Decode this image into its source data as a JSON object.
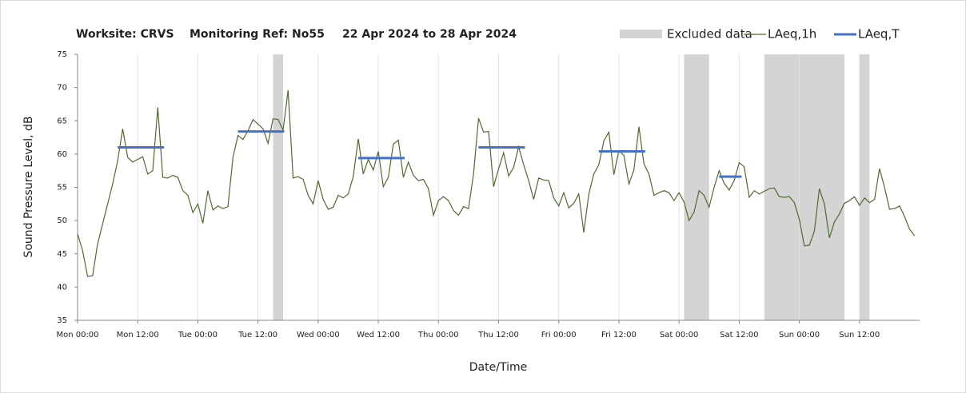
{
  "chart_data": {
    "type": "line",
    "title_parts": [
      "Worksite: CRVS",
      "Monitoring Ref: No55",
      "22 Apr 2024 to 28 Apr 2024"
    ],
    "x_label": "Date/Time",
    "y_label": "Sound Pressure Level, dB",
    "x": [
      0,
      1,
      2,
      3,
      4,
      5,
      6,
      7,
      8,
      9,
      10,
      11,
      12,
      13,
      14,
      15,
      16,
      17,
      18,
      19,
      20,
      21,
      22,
      23,
      24,
      25,
      26,
      27,
      28,
      29,
      30,
      31,
      32,
      33,
      34,
      35,
      36,
      37,
      38,
      39,
      40,
      41,
      42,
      43,
      44,
      45,
      46,
      47,
      48,
      49,
      50,
      51,
      52,
      53,
      54,
      55,
      56,
      57,
      58,
      59,
      60,
      61,
      62,
      63,
      64,
      65,
      66,
      67,
      68,
      69,
      70,
      71,
      72,
      73,
      74,
      75,
      76,
      77,
      78,
      79,
      80,
      81,
      82,
      83,
      84,
      85,
      86,
      87,
      88,
      89,
      90,
      91,
      92,
      93,
      94,
      95,
      96,
      97,
      98,
      99,
      100,
      101,
      102,
      103,
      104,
      105,
      106,
      107,
      108,
      109,
      110,
      111,
      112,
      113,
      114,
      115,
      116,
      117,
      118,
      119,
      120,
      121,
      122,
      123,
      124,
      125,
      126,
      127,
      128,
      129,
      130,
      131,
      132,
      133,
      134,
      135,
      136,
      137,
      138,
      139,
      140,
      141,
      142,
      143,
      144,
      145,
      146,
      147,
      148,
      149,
      150,
      151,
      152,
      153,
      154,
      155,
      156,
      157,
      158,
      159,
      160,
      161,
      162,
      163,
      164,
      165,
      166,
      167
    ],
    "series": [
      {
        "name": "LAeq,1h",
        "color": "#4f6a30",
        "values": [
          48,
          45.5,
          41.6,
          41.7,
          46.5,
          49.5,
          52.5,
          55.5,
          59,
          63.8,
          59.5,
          58.8,
          59.2,
          59.6,
          57,
          57.5,
          67,
          56.5,
          56.4,
          56.8,
          56.5,
          54.5,
          53.8,
          51.2,
          52.5,
          49.6,
          54.5,
          51.6,
          52.2,
          51.8,
          52.1,
          59.5,
          62.8,
          62.2,
          63.5,
          65.2,
          64.5,
          63.8,
          61.6,
          65.3,
          65.2,
          63.6,
          69.6,
          56.4,
          56.6,
          56.2,
          53.8,
          52.5,
          56,
          53.2,
          51.7,
          52,
          53.8,
          53.4,
          54,
          56.6,
          62.3,
          57,
          59.2,
          57.6,
          60.4,
          55.1,
          56.5,
          61.5,
          62.1,
          56.5,
          58.8,
          56.8,
          56,
          56.2,
          54.8,
          50.8,
          53,
          53.6,
          53,
          51.5,
          50.8,
          52.1,
          51.8,
          57,
          65.4,
          63.3,
          63.4,
          55.1,
          57.8,
          60.2,
          56.7,
          58,
          61.1,
          58.4,
          56,
          53.2,
          56.4,
          56.1,
          56,
          53.4,
          52.2,
          54.2,
          51.9,
          52.6,
          54,
          48.2,
          54,
          57,
          58.4,
          62,
          63.3,
          56.9,
          60.5,
          59.8,
          55.5,
          57.6,
          64.1,
          58.5,
          57,
          53.8,
          54.2,
          54.5,
          54.2,
          53,
          54.2,
          52.8,
          50,
          51.3,
          54.5,
          53.8,
          52,
          55,
          57.5,
          55.6,
          54.6,
          56,
          58.7,
          58.1,
          53.5,
          54.5,
          54,
          54.4,
          54.8,
          54.9,
          53.6,
          53.5,
          53.6,
          52.7,
          50.2,
          46.2,
          46.3,
          48.4,
          54.8,
          52.5,
          47.4,
          49.8,
          51,
          52.6,
          53,
          53.6,
          52.3,
          53.4,
          52.7,
          53.2,
          57.8,
          55,
          51.7,
          51.8,
          52.2,
          50.6,
          48.7,
          47.7
        ]
      }
    ],
    "segments": {
      "name": "LAeq,T",
      "color": "#4472c4",
      "items": [
        {
          "x": [
            8,
            17.25
          ],
          "value": 61.0
        },
        {
          "x": [
            32,
            41.25
          ],
          "value": 63.4
        },
        {
          "x": [
            56,
            65.25
          ],
          "value": 59.4
        },
        {
          "x": [
            80,
            89.25
          ],
          "value": 61.0
        },
        {
          "x": [
            104,
            113.25
          ],
          "value": 60.4
        },
        {
          "x": [
            128,
            132.5
          ],
          "value": 56.6
        }
      ]
    },
    "excluded": {
      "name": "Excluded data",
      "color": "#d4d4d4",
      "ranges": [
        [
          39,
          41
        ],
        [
          121,
          126
        ],
        [
          137,
          153
        ],
        [
          156,
          158
        ]
      ]
    },
    "xlim": [
      0,
      168
    ],
    "xticks": [
      {
        "value": 0,
        "label": "Mon 00:00"
      },
      {
        "value": 12,
        "label": "Mon 12:00"
      },
      {
        "value": 24,
        "label": "Tue 00:00"
      },
      {
        "value": 36,
        "label": "Tue 12:00"
      },
      {
        "value": 48,
        "label": "Wed 00:00"
      },
      {
        "value": 60,
        "label": "Wed 12:00"
      },
      {
        "value": 72,
        "label": "Thu 00:00"
      },
      {
        "value": 84,
        "label": "Thu 12:00"
      },
      {
        "value": 96,
        "label": "Fri 00:00"
      },
      {
        "value": 108,
        "label": "Fri 12:00"
      },
      {
        "value": 120,
        "label": "Sat 00:00"
      },
      {
        "value": 132,
        "label": "Sat 12:00"
      },
      {
        "value": 144,
        "label": "Sun 00:00"
      },
      {
        "value": 156,
        "label": "Sun 12:00"
      }
    ],
    "ylim": [
      35,
      75
    ],
    "yticks": [
      35,
      40,
      45,
      50,
      55,
      60,
      65,
      70,
      75
    ],
    "grid": "x"
  }
}
